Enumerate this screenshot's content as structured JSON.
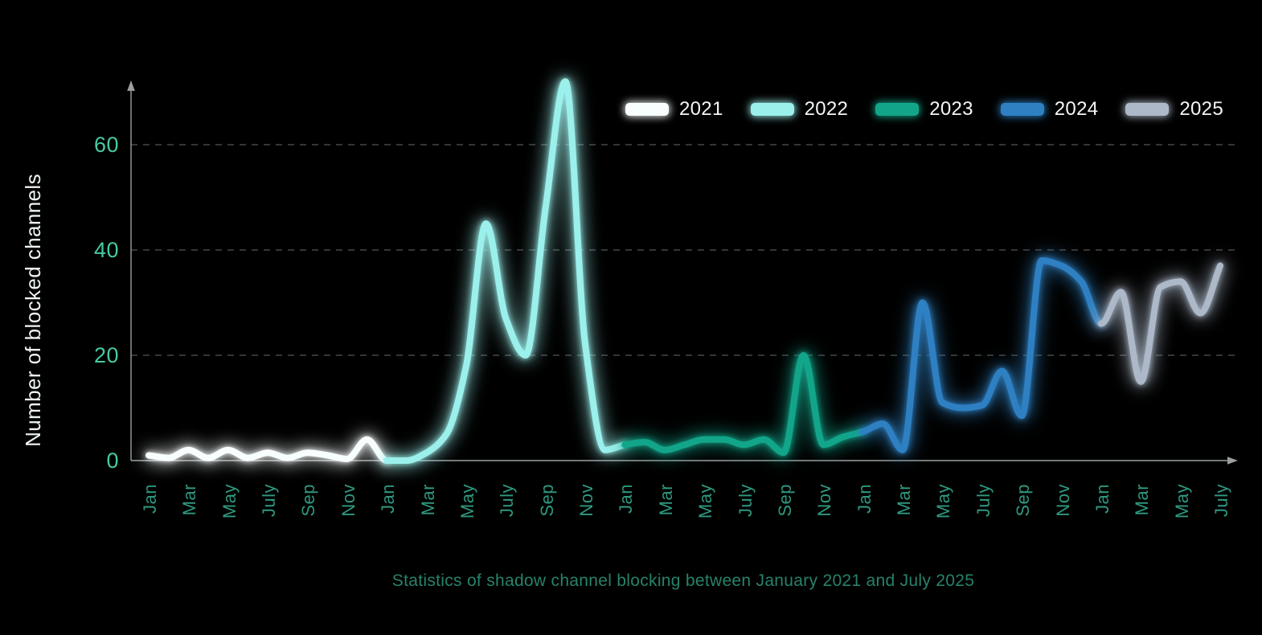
{
  "caption": {
    "text": "Statistics of shadow channel blocking between January 2021 and July 2025"
  },
  "colors": {
    "background": "#000000",
    "y_tick_text": "#46cba3",
    "x_tick_text": "#2f9880",
    "caption_text": "#27826b",
    "y_axis_title_text": "#eef4f3",
    "legend_text": "#f4f6f6",
    "gridline": "#474747",
    "axis_line": "#9b9f9f"
  },
  "chart_data": {
    "type": "line",
    "title": "Statistics of shadow channel blocking between January 2021 and July 2025",
    "xlabel": "",
    "ylabel": "Number of blocked channels",
    "ylim": [
      0,
      75
    ],
    "yticks": [
      0,
      20,
      40,
      60
    ],
    "grid": "horizontal dashed at 20, 40, 60",
    "legend_position": "top-right",
    "x_unit": "month index, 0 = January 2021",
    "x_tick_step": 2,
    "x_tick_labels": [
      "Jan",
      "Mar",
      "May",
      "July",
      "Sep",
      "Nov",
      "Jan",
      "Mar",
      "May",
      "July",
      "Sep",
      "Nov",
      "Jan",
      "Mar",
      "May",
      "July",
      "Sep",
      "Nov",
      "Jan",
      "Mar",
      "May",
      "July",
      "Sep",
      "Nov",
      "Jan",
      "Mar",
      "May",
      "July"
    ],
    "series": [
      {
        "name": "2021",
        "color": "#f8fdfd",
        "start_month_index": 0,
        "months": [
          "Jan",
          "Feb",
          "Mar",
          "Apr",
          "May",
          "Jun",
          "Jul",
          "Aug",
          "Sep",
          "Oct",
          "Nov",
          "Dec"
        ],
        "values": [
          1,
          0.5,
          2,
          0.5,
          2,
          0.5,
          1.5,
          0.5,
          1.5,
          1,
          0.3,
          4
        ]
      },
      {
        "name": "2022",
        "color": "#9bf0ec",
        "start_month_index": 12,
        "months": [
          "Jan",
          "Feb",
          "Mar",
          "Apr",
          "May",
          "Jun",
          "Jul",
          "Aug",
          "Sep",
          "Oct",
          "Nov",
          "Dec"
        ],
        "values": [
          0,
          0,
          1.5,
          5,
          18,
          45,
          27,
          20,
          48,
          72,
          22,
          2
        ]
      },
      {
        "name": "2023",
        "color": "#12a58a",
        "start_month_index": 24,
        "months": [
          "Jan",
          "Feb",
          "Mar",
          "Apr",
          "May",
          "Jun",
          "Jul",
          "Aug",
          "Sep",
          "Oct",
          "Nov",
          "Dec"
        ],
        "values": [
          3,
          3.5,
          2,
          3,
          4,
          4,
          3,
          4,
          1.5,
          20,
          3,
          4.5
        ]
      },
      {
        "name": "2024",
        "color": "#2e80c2",
        "start_month_index": 36,
        "months": [
          "Jan",
          "Feb",
          "Mar",
          "Apr",
          "May",
          "Jun",
          "Jul",
          "Aug",
          "Sep",
          "Oct",
          "Nov",
          "Dec"
        ],
        "values": [
          5.5,
          7,
          2,
          30,
          11,
          10,
          10.5,
          17,
          8.5,
          38,
          37,
          34
        ]
      },
      {
        "name": "2025",
        "color": "#adb9c9",
        "start_month_index": 48,
        "months": [
          "Jan",
          "Feb",
          "Mar",
          "Apr",
          "May",
          "Jun",
          "Jul"
        ],
        "values": [
          26,
          32,
          15,
          33,
          34,
          28,
          37
        ]
      }
    ]
  }
}
